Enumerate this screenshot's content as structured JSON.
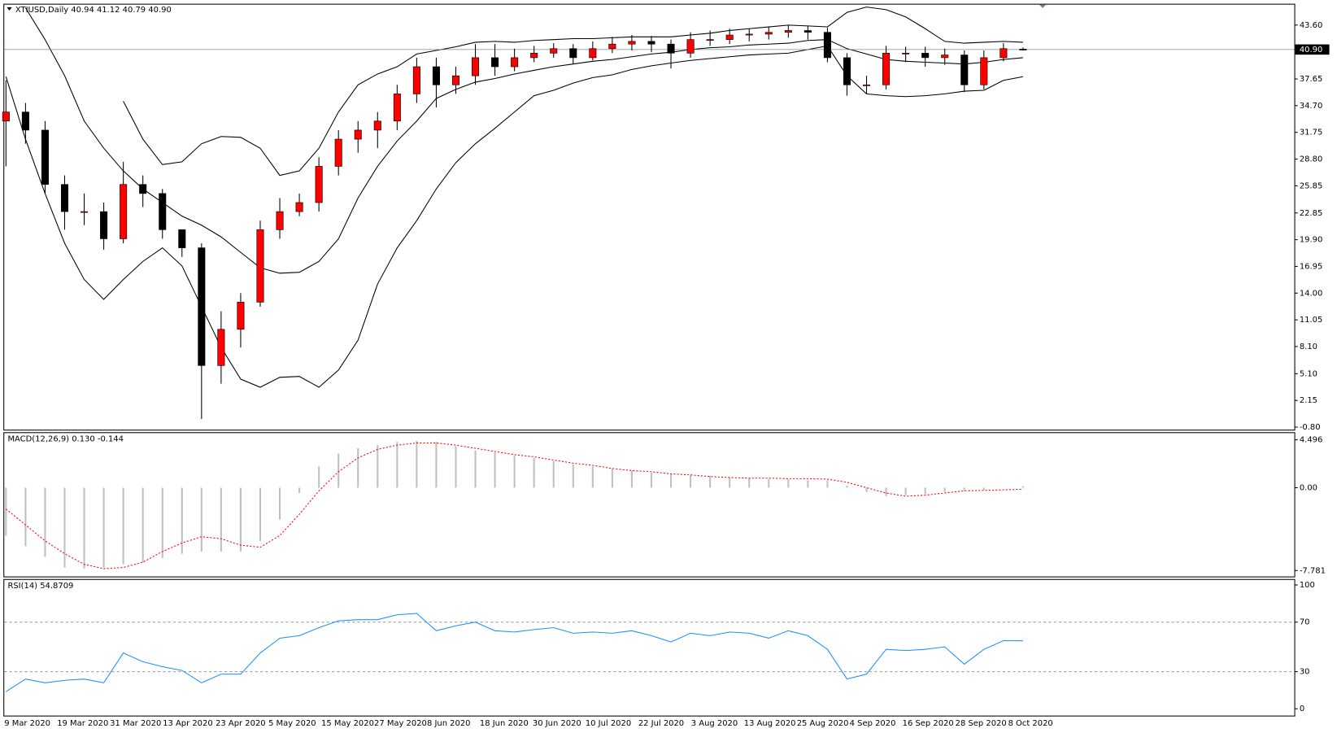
{
  "chart_data": [
    {
      "type": "candlestick",
      "title": "XTIUSD,Daily  40.94 41.12 40.79 40.90",
      "open": [
        33,
        34,
        32,
        26,
        23,
        23,
        20,
        26,
        25,
        21,
        19,
        6,
        10,
        13,
        21,
        23,
        24,
        28,
        31,
        32,
        33,
        36,
        39,
        37,
        38,
        40,
        39,
        40,
        40.5,
        41,
        40,
        41,
        41.5,
        41.8,
        41.5,
        40.5,
        42,
        42,
        42.5,
        42.6,
        42.8,
        43,
        42.8,
        40,
        37,
        37,
        40.5,
        40.5,
        40,
        40.3,
        37,
        40,
        40.94
      ],
      "high": [
        37.5,
        35,
        33,
        27,
        25,
        24,
        28.5,
        27,
        25.5,
        21,
        19.5,
        12,
        14,
        22,
        24.5,
        25,
        29,
        32,
        33,
        34,
        37,
        40,
        40,
        39,
        41.5,
        41.5,
        41,
        41.3,
        41.6,
        41.5,
        41.8,
        42.3,
        42.5,
        42.4,
        42,
        42.8,
        43,
        43.2,
        43.2,
        43.4,
        43.6,
        43.5,
        43.3,
        40.5,
        38,
        41.3,
        41.2,
        41.2,
        41,
        40.8,
        40.8,
        41.6,
        41.12
      ],
      "low": [
        28,
        30.5,
        25,
        21,
        21.5,
        18.8,
        19.5,
        23.5,
        20,
        18,
        0.1,
        4,
        8,
        12.5,
        20,
        22.5,
        23,
        27,
        29.5,
        30,
        32,
        35,
        34.5,
        36,
        37,
        38,
        38.5,
        39.5,
        40,
        39.3,
        39.7,
        40.5,
        40.8,
        40.6,
        38.8,
        40,
        41.3,
        41.5,
        41.8,
        42,
        42.2,
        42,
        39.5,
        35.8,
        36,
        36.5,
        39.5,
        39,
        39.2,
        36.2,
        36.5,
        39.6,
        40.79
      ],
      "close": [
        34,
        32,
        26,
        23,
        23,
        20,
        26,
        25,
        21,
        19,
        6,
        10,
        13,
        21,
        23,
        24,
        28,
        31,
        32,
        33,
        36,
        39,
        37,
        38,
        40,
        39,
        40,
        40.5,
        41,
        40,
        41,
        41.5,
        41.8,
        41.5,
        40.5,
        42,
        42,
        42.5,
        42.6,
        42.8,
        43,
        42.8,
        40,
        37,
        37,
        40.5,
        40.5,
        40,
        40.3,
        37,
        40,
        41,
        40.9
      ],
      "up_color": "#ff0000",
      "down_color": "#000000",
      "bands": [
        {
          "color": "#000000",
          "values": [
            null,
            null,
            null,
            null,
            null,
            null,
            35.2,
            31,
            28.2,
            28.5,
            30.5,
            31.3,
            31.2,
            30,
            27,
            27.5,
            30,
            34,
            37,
            38.2,
            39,
            40.4,
            40.8,
            41.2,
            41.7,
            41.8,
            41.7,
            41.9,
            42,
            42.1,
            42.1,
            42.2,
            42.3,
            42.3,
            42.3,
            42.5,
            42.7,
            43,
            43.2,
            43.4,
            43.6,
            43.5,
            43.4,
            45,
            45.6,
            45.3,
            44.5,
            43.2,
            41.8,
            41.6,
            41.7,
            41.8,
            41.7
          ]
        },
        {
          "color": "#000000",
          "values": [
            null,
            45.5,
            42,
            38,
            33,
            30,
            27.5,
            25.5,
            24,
            22.5,
            21.5,
            20.2,
            18.5,
            16.8,
            16.2,
            16.3,
            17.5,
            20,
            24.5,
            28,
            30.8,
            33,
            35.5,
            36.5,
            37.3,
            37.7,
            38.2,
            38.6,
            39,
            39.3,
            39.6,
            39.8,
            40.1,
            40.4,
            40.6,
            40.9,
            41.1,
            41.2,
            41.4,
            41.5,
            41.6,
            41.9,
            42,
            41,
            40.4,
            39.8,
            39.6,
            39.5,
            39.4,
            39.3,
            39.5,
            39.8,
            40
          ]
        },
        {
          "color": "#000000",
          "values": [
            37.9,
            31,
            25,
            19.5,
            15.5,
            13.3,
            15.5,
            17.5,
            19,
            17,
            12.5,
            8,
            4.5,
            3.6,
            4.7,
            4.8,
            3.6,
            5.5,
            8.8,
            15,
            19,
            22,
            25.5,
            28.4,
            30.5,
            32.2,
            34,
            35.8,
            36.4,
            37.2,
            37.8,
            38.1,
            38.7,
            39.1,
            39.4,
            39.7,
            39.9,
            40.1,
            40.3,
            40.4,
            40.5,
            40.9,
            41.3,
            38,
            36,
            35.8,
            35.7,
            35.8,
            36,
            36.3,
            36.4,
            37.5,
            37.9
          ]
        }
      ],
      "current_price": {
        "value": 40.9,
        "label": "40.90"
      },
      "ylim": [
        -1.08,
        45.86
      ],
      "yticks": [
        {
          "value": 43.6,
          "label": "43.60"
        },
        {
          "value": 37.65,
          "label": "37.65"
        },
        {
          "value": 34.7,
          "label": "34.70"
        },
        {
          "value": 31.75,
          "label": "31.75"
        },
        {
          "value": 28.8,
          "label": "28.80"
        },
        {
          "value": 25.85,
          "label": "25.85"
        },
        {
          "value": 22.85,
          "label": "22.85"
        },
        {
          "value": 19.9,
          "label": "19.90"
        },
        {
          "value": 16.95,
          "label": "16.95"
        },
        {
          "value": 14,
          "label": "14.00"
        },
        {
          "value": 11.05,
          "label": "11.05"
        },
        {
          "value": 8.1,
          "label": "8.10"
        },
        {
          "value": 5.1,
          "label": "5.10"
        },
        {
          "value": 2.15,
          "label": "2.15"
        },
        {
          "value": -0.8,
          "label": "-0.80"
        }
      ],
      "dates": [
        "9 Mar 2020",
        "19 Mar 2020",
        "31 Mar 2020",
        "13 Apr 2020",
        "23 Apr 2020",
        "5 May 2020",
        "15 May 2020",
        "27 May 2020",
        "8 Jun 2020",
        "18 Jun 2020",
        "30 Jun 2020",
        "10 Jul 2020",
        "22 Jul 2020",
        "3 Aug 2020",
        "13 Aug 2020",
        "25 Aug 2020",
        "4 Sep 2020",
        "16 Sep 2020",
        "28 Sep 2020",
        "8 Oct 2020"
      ]
    },
    {
      "type": "macd",
      "title": "MACD(12,26,9) 0.130 -0.144",
      "histogram": [
        -4.5,
        -5.5,
        -6.5,
        -7.5,
        -7.6,
        -7.5,
        -7.2,
        -7,
        -6.6,
        -6.2,
        -6,
        -6,
        -6,
        -5,
        -3,
        -0.5,
        2,
        3.2,
        3.7,
        4,
        4.3,
        4.4,
        4.3,
        3.9,
        3.5,
        3.3,
        3,
        2.8,
        2.5,
        2.2,
        2,
        1.8,
        1.6,
        1.4,
        1.3,
        1.2,
        1.1,
        1,
        0.9,
        0.8,
        0.8,
        0.7,
        0.7,
        0.2,
        -0.4,
        -0.8,
        -0.7,
        -0.6,
        -0.4,
        -0.3,
        -0.2,
        0,
        0.13
      ],
      "signal": [
        -2,
        -3.5,
        -5,
        -6.2,
        -7.2,
        -7.6,
        -7.5,
        -7,
        -6,
        -5.2,
        -4.6,
        -4.8,
        -5.4,
        -5.6,
        -4.5,
        -2.5,
        -0.3,
        1.5,
        2.8,
        3.6,
        4,
        4.2,
        4.2,
        4,
        3.7,
        3.4,
        3.1,
        2.9,
        2.6,
        2.3,
        2.1,
        1.8,
        1.6,
        1.5,
        1.3,
        1.2,
        1.05,
        0.95,
        0.9,
        0.9,
        0.85,
        0.85,
        0.8,
        0.5,
        0,
        -0.5,
        -0.8,
        -0.7,
        -0.5,
        -0.3,
        -0.25,
        -0.2,
        -0.144
      ],
      "histogram_color": "#c0c0c0",
      "signal_color": "#ff0000",
      "ylim": [
        -8.34,
        5.21
      ],
      "yticks": [
        4.496,
        {
          "value": 0,
          "label": "0.00"
        },
        -7.781
      ]
    },
    {
      "type": "line",
      "title": "RSI(14) 54.8709",
      "values": [
        13.8,
        24,
        21,
        23,
        24,
        21,
        45,
        38,
        34,
        31,
        21,
        28,
        28,
        45,
        57,
        59,
        65.5,
        71,
        72,
        72,
        76,
        77,
        63,
        67,
        70,
        63,
        62,
        64,
        65.5,
        61,
        62,
        61,
        63,
        59,
        54,
        61,
        59,
        62,
        61,
        57,
        63,
        59,
        48,
        24,
        28,
        48,
        47,
        48,
        50,
        36,
        48,
        55,
        54.87
      ],
      "color": "#1e90ff",
      "levels": [
        70,
        30
      ],
      "ylim": [
        -5.5,
        104.8
      ],
      "yticks": [
        100,
        70,
        30,
        0
      ]
    }
  ]
}
